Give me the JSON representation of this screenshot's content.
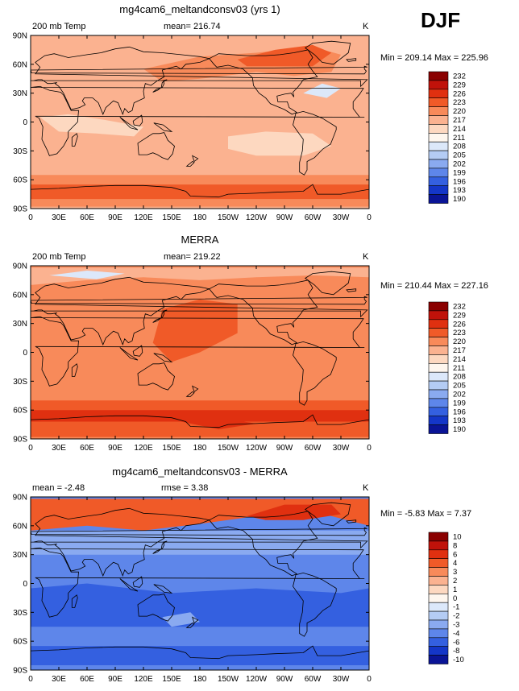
{
  "season": "DJF",
  "panels": [
    {
      "title": "mg4cam6_meltandconsv03 (yrs 1)",
      "left_label": "200 mb Temp",
      "center_label": "mean= 216.74",
      "right_label": "K",
      "minmax": "Min = 209.14 Max = 225.96",
      "colorbar_levels": [
        "232",
        "229",
        "226",
        "223",
        "220",
        "217",
        "214",
        "211",
        "208",
        "205",
        "202",
        "199",
        "196",
        "193",
        "190"
      ],
      "colorbar_colors": [
        "#8a0000",
        "#c0120a",
        "#e03010",
        "#f05a28",
        "#f88a5a",
        "#fbb290",
        "#fdd8c0",
        "#fef6ee",
        "#dce8fa",
        "#b4ccf4",
        "#8aaaf0",
        "#5e86ea",
        "#3460e0",
        "#1436c8",
        "#0a1496"
      ],
      "field_colors": {
        "base": "#fbb290",
        "warm": "#f88a5a",
        "hot": "#f05a28",
        "cool": "#fdd8c0",
        "cold": "#dce8fa"
      }
    },
    {
      "title": "MERRA",
      "left_label": "200 mb Temp",
      "center_label": "mean= 219.22",
      "right_label": "K",
      "minmax": "Min = 210.44 Max = 227.16",
      "colorbar_levels": [
        "232",
        "229",
        "226",
        "223",
        "220",
        "217",
        "214",
        "211",
        "208",
        "205",
        "202",
        "199",
        "196",
        "193",
        "190"
      ],
      "colorbar_colors": [
        "#8a0000",
        "#c0120a",
        "#e03010",
        "#f05a28",
        "#f88a5a",
        "#fbb290",
        "#fdd8c0",
        "#fef6ee",
        "#dce8fa",
        "#b4ccf4",
        "#8aaaf0",
        "#5e86ea",
        "#3460e0",
        "#1436c8",
        "#0a1496"
      ],
      "field_colors": {
        "base": "#f88a5a",
        "warm": "#f05a28",
        "hot": "#e03010",
        "cool": "#fbb290",
        "cold": "#dce8fa"
      }
    },
    {
      "title": "mg4cam6_meltandconsv03 - MERRA",
      "left_label": "mean = -2.48",
      "center_label": "rmse = 3.38",
      "right_label": "K",
      "minmax": "Min = -5.83 Max = 7.37",
      "colorbar_levels": [
        "10",
        "8",
        "6",
        "4",
        "3",
        "2",
        "1",
        "0",
        "-1",
        "-2",
        "-3",
        "-4",
        "-6",
        "-8",
        "-10"
      ],
      "colorbar_colors": [
        "#8a0000",
        "#c0120a",
        "#e03010",
        "#f05a28",
        "#f88a5a",
        "#fbb290",
        "#fdd8c0",
        "#fef6ee",
        "#dce8fa",
        "#b4ccf4",
        "#8aaaf0",
        "#5e86ea",
        "#3460e0",
        "#1436c8",
        "#0a1496"
      ],
      "field_colors": {
        "base": "#5e86ea",
        "warm": "#f05a28",
        "hot": "#e03010",
        "cool": "#8aaaf0",
        "cold": "#3460e0"
      }
    }
  ],
  "x_ticks": [
    "0",
    "30E",
    "60E",
    "90E",
    "120E",
    "150E",
    "180",
    "150W",
    "120W",
    "90W",
    "60W",
    "30W",
    "0"
  ],
  "y_ticks": [
    "90N",
    "60N",
    "30N",
    "0",
    "30S",
    "60S",
    "90S"
  ]
}
